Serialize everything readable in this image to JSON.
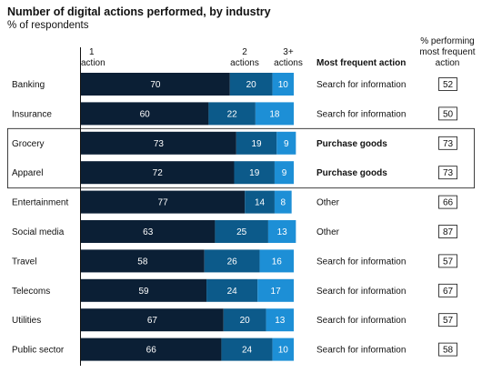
{
  "chart_data": {
    "type": "bar",
    "orientation": "horizontal",
    "stacked": true,
    "title": "Number of digital actions performed, by industry",
    "subtitle": "% of respondents",
    "xlim": [
      0,
      100
    ],
    "series_headers": [
      [
        "1",
        "action"
      ],
      [
        "2",
        "actions"
      ],
      [
        "3+",
        "actions"
      ]
    ],
    "action_header": "Most frequent action",
    "pct_header": [
      "% performing",
      "most frequent",
      "action"
    ],
    "categories": [
      "Banking",
      "Insurance",
      "Grocery",
      "Apparel",
      "Entertainment",
      "Social media",
      "Travel",
      "Telecoms",
      "Utilities",
      "Public sector"
    ],
    "series": [
      {
        "name": "1 action",
        "color": "#0b1f35",
        "values": [
          70,
          60,
          73,
          72,
          77,
          63,
          58,
          59,
          67,
          66
        ]
      },
      {
        "name": "2 actions",
        "color": "#0c5a8a",
        "values": [
          20,
          22,
          19,
          19,
          14,
          25,
          26,
          24,
          20,
          24
        ]
      },
      {
        "name": "3+ actions",
        "color": "#1d8fd6",
        "values": [
          10,
          18,
          9,
          9,
          8,
          13,
          16,
          17,
          13,
          10
        ]
      }
    ],
    "most_frequent_action": [
      "Search for information",
      "Search for information",
      "Purchase goods",
      "Purchase goods",
      "Other",
      "Other",
      "Search for information",
      "Search for information",
      "Search for information",
      "Search for information"
    ],
    "pct_most_frequent": [
      52,
      50,
      73,
      73,
      66,
      87,
      57,
      67,
      57,
      58
    ],
    "highlighted": [
      "Grocery",
      "Apparel"
    ]
  }
}
